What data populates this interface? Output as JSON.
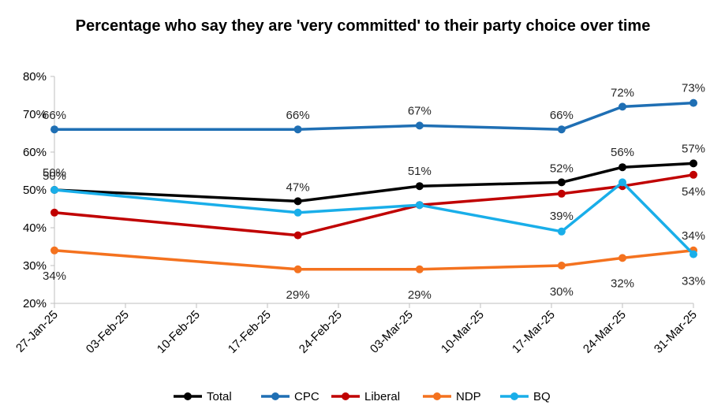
{
  "chart_data": {
    "type": "line",
    "title": "Percentage who say they are 'very committed' to their party choice over time",
    "xlabel": "",
    "ylabel": "",
    "ylim": [
      20,
      80
    ],
    "y_tick_step": 10,
    "y_tick_labels": [
      "20%",
      "30%",
      "40%",
      "50%",
      "60%",
      "70%",
      "80%"
    ],
    "x_axis_start": "2025-01-27",
    "x_axis_end": "2025-03-31",
    "x_tick_labels": [
      "27-Jan-25",
      "03-Feb-25",
      "10-Feb-25",
      "17-Feb-25",
      "24-Feb-25",
      "03-Mar-25",
      "10-Mar-25",
      "17-Mar-25",
      "24-Mar-25",
      "31-Mar-25"
    ],
    "x": [
      "2025-01-27",
      "2025-02-20",
      "2025-03-04",
      "2025-03-18",
      "2025-03-24",
      "2025-03-31"
    ],
    "grid": false,
    "legend": "bottom",
    "series": [
      {
        "name": "Total",
        "color": "#000000",
        "values": [
          50,
          47,
          51,
          52,
          56,
          57
        ],
        "labels": [
          "50%",
          "47%",
          "51%",
          "52%",
          "56%",
          "57%"
        ]
      },
      {
        "name": "CPC",
        "color": "#1F6FB4",
        "values": [
          66,
          66,
          67,
          66,
          72,
          73
        ],
        "labels": [
          "66%",
          "66%",
          "67%",
          "66%",
          "72%",
          "73%"
        ]
      },
      {
        "name": "Liberal",
        "color": "#C00000",
        "values": [
          44,
          38,
          46,
          49,
          51,
          54
        ],
        "labels": [
          "",
          "",
          "",
          "",
          "",
          "54%"
        ]
      },
      {
        "name": "NDP",
        "color": "#F4721F",
        "values": [
          34,
          29,
          29,
          30,
          32,
          34
        ],
        "labels": [
          "34%",
          "29%",
          "29%",
          "30%",
          "32%",
          "34%"
        ]
      },
      {
        "name": "BQ",
        "color": "#19AEE9",
        "values": [
          50,
          44,
          46,
          39,
          52,
          33
        ],
        "labels": [
          "50%",
          "",
          "",
          "39%",
          "",
          "33%"
        ]
      }
    ]
  }
}
